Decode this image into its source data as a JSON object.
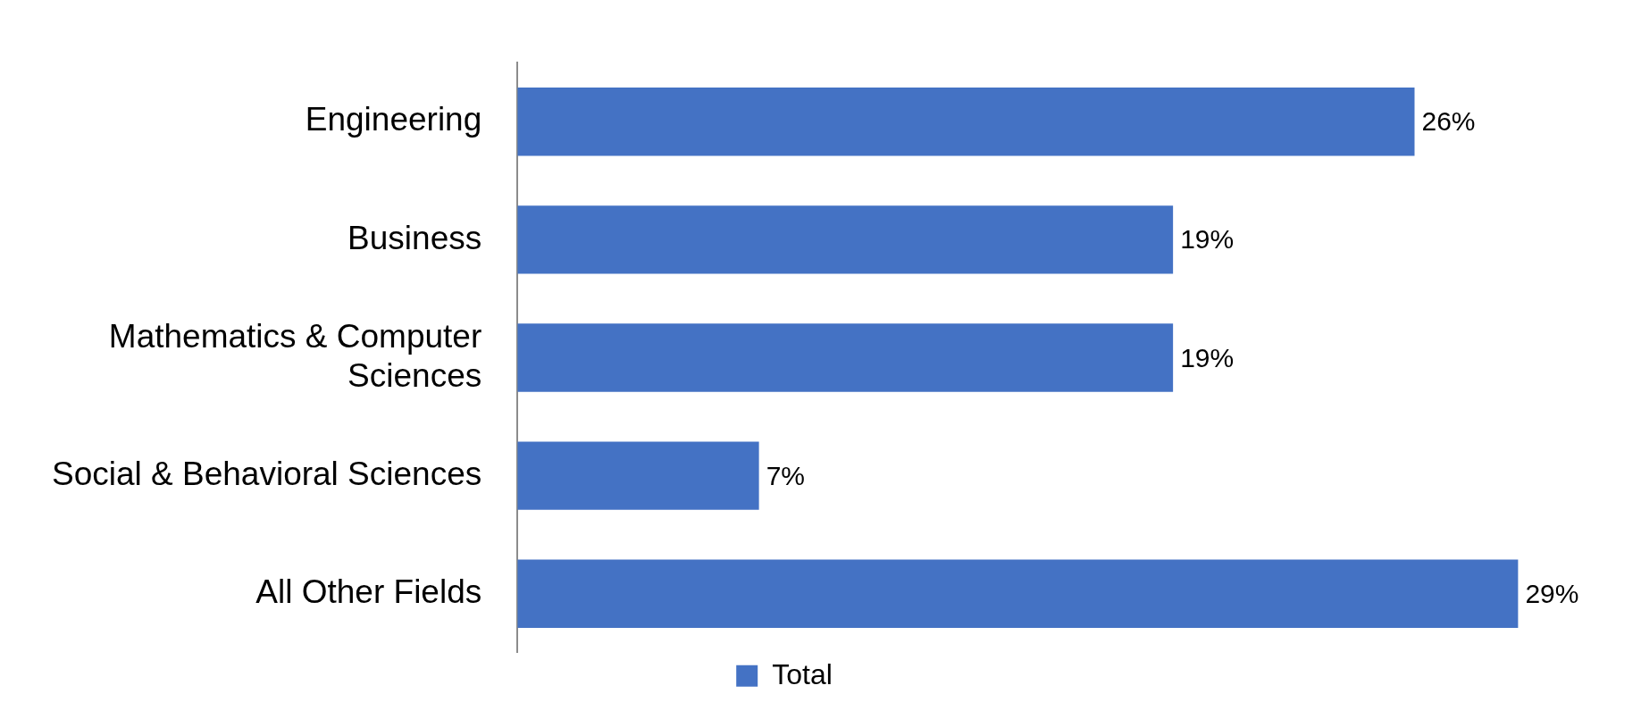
{
  "chart_data": {
    "type": "bar",
    "orientation": "horizontal",
    "categories": [
      "Engineering",
      "Business",
      "Mathematics & Computer Sciences",
      "Social & Behavioral Sciences",
      "All Other Fields"
    ],
    "series": [
      {
        "name": "Total",
        "color": "#4472c4",
        "values": [
          26,
          19,
          19,
          7,
          29
        ],
        "value_labels": [
          "26%",
          "19%",
          "19%",
          "7%",
          "29%"
        ]
      }
    ],
    "tick_labels": "y",
    "grid": false,
    "legend": "bottom"
  }
}
